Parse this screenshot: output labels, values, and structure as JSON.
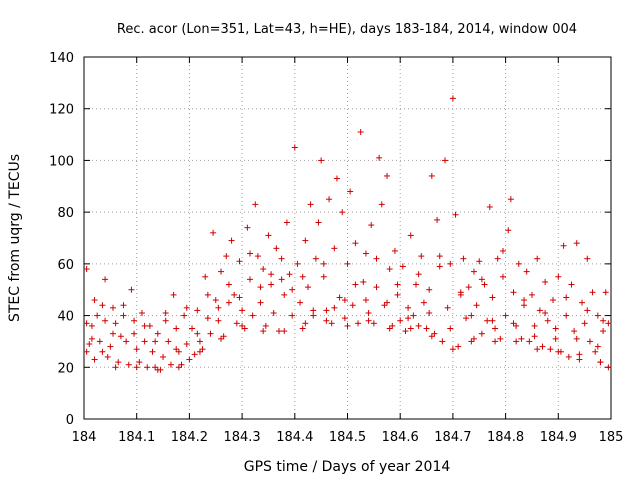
{
  "chart_data": {
    "type": "scatter",
    "title": "Rec. acor (Lon=351, Lat=43, h=HE), days 183-184, 2014, window 004",
    "xlabel": "GPS time / Days of year 2014",
    "ylabel": "STEC from uqrg / TECUs",
    "xlim": [
      184,
      185
    ],
    "ylim": [
      0,
      140
    ],
    "xticks": [
      "184",
      "184.1",
      "184.2",
      "184.3",
      "184.4",
      "184.5",
      "184.6",
      "184.7",
      "184.8",
      "184.9",
      "185"
    ],
    "yticks": [
      "0",
      "20",
      "40",
      "60",
      "80",
      "100",
      "120",
      "140"
    ],
    "grid": true,
    "marker": "+",
    "color": "#d00000",
    "series": [
      {
        "name": "STEC",
        "points": [
          [
            184.005,
            58
          ],
          [
            184.005,
            37
          ],
          [
            184.005,
            26
          ],
          [
            184.01,
            29
          ],
          [
            184.015,
            31
          ],
          [
            184.02,
            46
          ],
          [
            184.025,
            40
          ],
          [
            184.03,
            30
          ],
          [
            184.035,
            26
          ],
          [
            184.04,
            54
          ],
          [
            184.04,
            38
          ],
          [
            184.045,
            24
          ],
          [
            184.05,
            28
          ],
          [
            184.055,
            43
          ],
          [
            184.06,
            37
          ],
          [
            184.065,
            22
          ],
          [
            184.07,
            32
          ],
          [
            184.075,
            44
          ],
          [
            184.08,
            30
          ],
          [
            184.085,
            21
          ],
          [
            184.09,
            50
          ],
          [
            184.095,
            38
          ],
          [
            184.1,
            27
          ],
          [
            184.105,
            22
          ],
          [
            184.11,
            41
          ],
          [
            184.115,
            30
          ],
          [
            184.12,
            20
          ],
          [
            184.125,
            36
          ],
          [
            184.13,
            26
          ],
          [
            184.135,
            20
          ],
          [
            184.14,
            33
          ],
          [
            184.145,
            19
          ],
          [
            184.15,
            24
          ],
          [
            184.155,
            38
          ],
          [
            184.16,
            30
          ],
          [
            184.165,
            21
          ],
          [
            184.17,
            48
          ],
          [
            184.175,
            35
          ],
          [
            184.18,
            26
          ],
          [
            184.185,
            21
          ],
          [
            184.19,
            40
          ],
          [
            184.195,
            29
          ],
          [
            184.2,
            23
          ],
          [
            184.205,
            35
          ],
          [
            184.21,
            25
          ],
          [
            184.215,
            42
          ],
          [
            184.22,
            30
          ],
          [
            184.225,
            27
          ],
          [
            184.23,
            55
          ],
          [
            184.235,
            39
          ],
          [
            184.24,
            33
          ],
          [
            184.245,
            72
          ],
          [
            184.25,
            46
          ],
          [
            184.255,
            38
          ],
          [
            184.26,
            57
          ],
          [
            184.265,
            32
          ],
          [
            184.27,
            63
          ],
          [
            184.275,
            45
          ],
          [
            184.28,
            69
          ],
          [
            184.285,
            48
          ],
          [
            184.29,
            37
          ],
          [
            184.295,
            61
          ],
          [
            184.3,
            42
          ],
          [
            184.305,
            35
          ],
          [
            184.31,
            74
          ],
          [
            184.315,
            54
          ],
          [
            184.32,
            40
          ],
          [
            184.325,
            83
          ],
          [
            184.33,
            63
          ],
          [
            184.335,
            45
          ],
          [
            184.34,
            58
          ],
          [
            184.345,
            36
          ],
          [
            184.35,
            71
          ],
          [
            184.355,
            52
          ],
          [
            184.36,
            41
          ],
          [
            184.365,
            66
          ],
          [
            184.37,
            34
          ],
          [
            184.375,
            62
          ],
          [
            184.38,
            48
          ],
          [
            184.385,
            76
          ],
          [
            184.39,
            56
          ],
          [
            184.395,
            40
          ],
          [
            184.4,
            105
          ],
          [
            184.405,
            60
          ],
          [
            184.41,
            45
          ],
          [
            184.415,
            35
          ],
          [
            184.42,
            69
          ],
          [
            184.425,
            51
          ],
          [
            184.43,
            83
          ],
          [
            184.435,
            40
          ],
          [
            184.44,
            62
          ],
          [
            184.445,
            76
          ],
          [
            184.45,
            100
          ],
          [
            184.455,
            55
          ],
          [
            184.46,
            42
          ],
          [
            184.465,
            85
          ],
          [
            184.47,
            37
          ],
          [
            184.475,
            66
          ],
          [
            184.48,
            93
          ],
          [
            184.485,
            47
          ],
          [
            184.49,
            80
          ],
          [
            184.495,
            39
          ],
          [
            184.5,
            60
          ],
          [
            184.505,
            88
          ],
          [
            184.51,
            44
          ],
          [
            184.515,
            68
          ],
          [
            184.52,
            37
          ],
          [
            184.525,
            111
          ],
          [
            184.53,
            53
          ],
          [
            184.535,
            64
          ],
          [
            184.54,
            41
          ],
          [
            184.545,
            75
          ],
          [
            184.55,
            37
          ],
          [
            184.555,
            62
          ],
          [
            184.56,
            101
          ],
          [
            184.565,
            83
          ],
          [
            184.57,
            44
          ],
          [
            184.575,
            94
          ],
          [
            184.58,
            58
          ],
          [
            184.585,
            36
          ],
          [
            184.59,
            65
          ],
          [
            184.595,
            48
          ],
          [
            184.6,
            38
          ],
          [
            184.605,
            59
          ],
          [
            184.61,
            34
          ],
          [
            184.615,
            43
          ],
          [
            184.62,
            71
          ],
          [
            184.625,
            40
          ],
          [
            184.63,
            52
          ],
          [
            184.635,
            36
          ],
          [
            184.64,
            63
          ],
          [
            184.645,
            45
          ],
          [
            184.65,
            35
          ],
          [
            184.655,
            50
          ],
          [
            184.66,
            94
          ],
          [
            184.665,
            33
          ],
          [
            184.67,
            77
          ],
          [
            184.675,
            59
          ],
          [
            184.68,
            30
          ],
          [
            184.685,
            100
          ],
          [
            184.69,
            43
          ],
          [
            184.695,
            60
          ],
          [
            184.7,
            124
          ],
          [
            184.705,
            79
          ],
          [
            184.71,
            28
          ],
          [
            184.715,
            48
          ],
          [
            184.72,
            62
          ],
          [
            184.725,
            39
          ],
          [
            184.73,
            51
          ],
          [
            184.735,
            30
          ],
          [
            184.74,
            57
          ],
          [
            184.745,
            44
          ],
          [
            184.75,
            61
          ],
          [
            184.755,
            33
          ],
          [
            184.76,
            52
          ],
          [
            184.765,
            38
          ],
          [
            184.77,
            82
          ],
          [
            184.775,
            47
          ],
          [
            184.78,
            35
          ],
          [
            184.785,
            62
          ],
          [
            184.79,
            31
          ],
          [
            184.795,
            55
          ],
          [
            184.8,
            40
          ],
          [
            184.805,
            73
          ],
          [
            184.81,
            85
          ],
          [
            184.815,
            49
          ],
          [
            184.82,
            36
          ],
          [
            184.825,
            60
          ],
          [
            184.83,
            31
          ],
          [
            184.835,
            44
          ],
          [
            184.84,
            57
          ],
          [
            184.845,
            30
          ],
          [
            184.85,
            48
          ],
          [
            184.855,
            36
          ],
          [
            184.86,
            62
          ],
          [
            184.865,
            42
          ],
          [
            184.87,
            28
          ],
          [
            184.875,
            53
          ],
          [
            184.88,
            38
          ],
          [
            184.885,
            27
          ],
          [
            184.89,
            46
          ],
          [
            184.895,
            35
          ],
          [
            184.9,
            55
          ],
          [
            184.905,
            26
          ],
          [
            184.91,
            67
          ],
          [
            184.915,
            40
          ],
          [
            184.92,
            24
          ],
          [
            184.925,
            52
          ],
          [
            184.93,
            34
          ],
          [
            184.935,
            68
          ],
          [
            184.94,
            23
          ],
          [
            184.945,
            45
          ],
          [
            184.95,
            37
          ],
          [
            184.955,
            62
          ],
          [
            184.96,
            30
          ],
          [
            184.965,
            49
          ],
          [
            184.97,
            26
          ],
          [
            184.975,
            40
          ],
          [
            184.98,
            22
          ],
          [
            184.985,
            34
          ],
          [
            184.99,
            49
          ],
          [
            184.995,
            37
          ],
          [
            184.995,
            20
          ],
          [
            184.02,
            23
          ],
          [
            184.06,
            20
          ],
          [
            184.1,
            20
          ],
          [
            184.14,
            19
          ],
          [
            184.18,
            20
          ],
          [
            184.22,
            26
          ],
          [
            184.26,
            31
          ],
          [
            184.3,
            36
          ],
          [
            184.34,
            34
          ],
          [
            184.38,
            34
          ],
          [
            184.42,
            37
          ],
          [
            184.46,
            38
          ],
          [
            184.5,
            36
          ],
          [
            184.54,
            38
          ],
          [
            184.58,
            35
          ],
          [
            184.62,
            35
          ],
          [
            184.66,
            32
          ],
          [
            184.7,
            27
          ],
          [
            184.74,
            31
          ],
          [
            184.78,
            30
          ],
          [
            184.82,
            30
          ],
          [
            184.86,
            27
          ],
          [
            184.9,
            26
          ],
          [
            184.94,
            25
          ],
          [
            184.98,
            22
          ],
          [
            184.015,
            36
          ],
          [
            184.055,
            33
          ],
          [
            184.095,
            33
          ],
          [
            184.135,
            30
          ],
          [
            184.175,
            27
          ],
          [
            184.215,
            33
          ],
          [
            184.255,
            43
          ],
          [
            184.295,
            47
          ],
          [
            184.335,
            51
          ],
          [
            184.375,
            54
          ],
          [
            184.415,
            55
          ],
          [
            184.455,
            60
          ],
          [
            184.495,
            46
          ],
          [
            184.535,
            46
          ],
          [
            184.575,
            45
          ],
          [
            184.615,
            39
          ],
          [
            184.655,
            41
          ],
          [
            184.695,
            35
          ],
          [
            184.735,
            40
          ],
          [
            184.775,
            38
          ],
          [
            184.815,
            37
          ],
          [
            184.855,
            32
          ],
          [
            184.895,
            31
          ],
          [
            184.935,
            31
          ],
          [
            184.975,
            28
          ],
          [
            184.035,
            44
          ],
          [
            184.075,
            40
          ],
          [
            184.115,
            36
          ],
          [
            184.155,
            41
          ],
          [
            184.195,
            43
          ],
          [
            184.235,
            48
          ],
          [
            184.275,
            52
          ],
          [
            184.315,
            64
          ],
          [
            184.355,
            56
          ],
          [
            184.395,
            50
          ],
          [
            184.435,
            42
          ],
          [
            184.475,
            43
          ],
          [
            184.515,
            52
          ],
          [
            184.555,
            51
          ],
          [
            184.595,
            52
          ],
          [
            184.635,
            56
          ],
          [
            184.675,
            63
          ],
          [
            184.715,
            49
          ],
          [
            184.755,
            54
          ],
          [
            184.795,
            65
          ],
          [
            184.835,
            46
          ],
          [
            184.875,
            41
          ],
          [
            184.915,
            47
          ],
          [
            184.955,
            42
          ],
          [
            184.985,
            38
          ]
        ]
      }
    ]
  }
}
